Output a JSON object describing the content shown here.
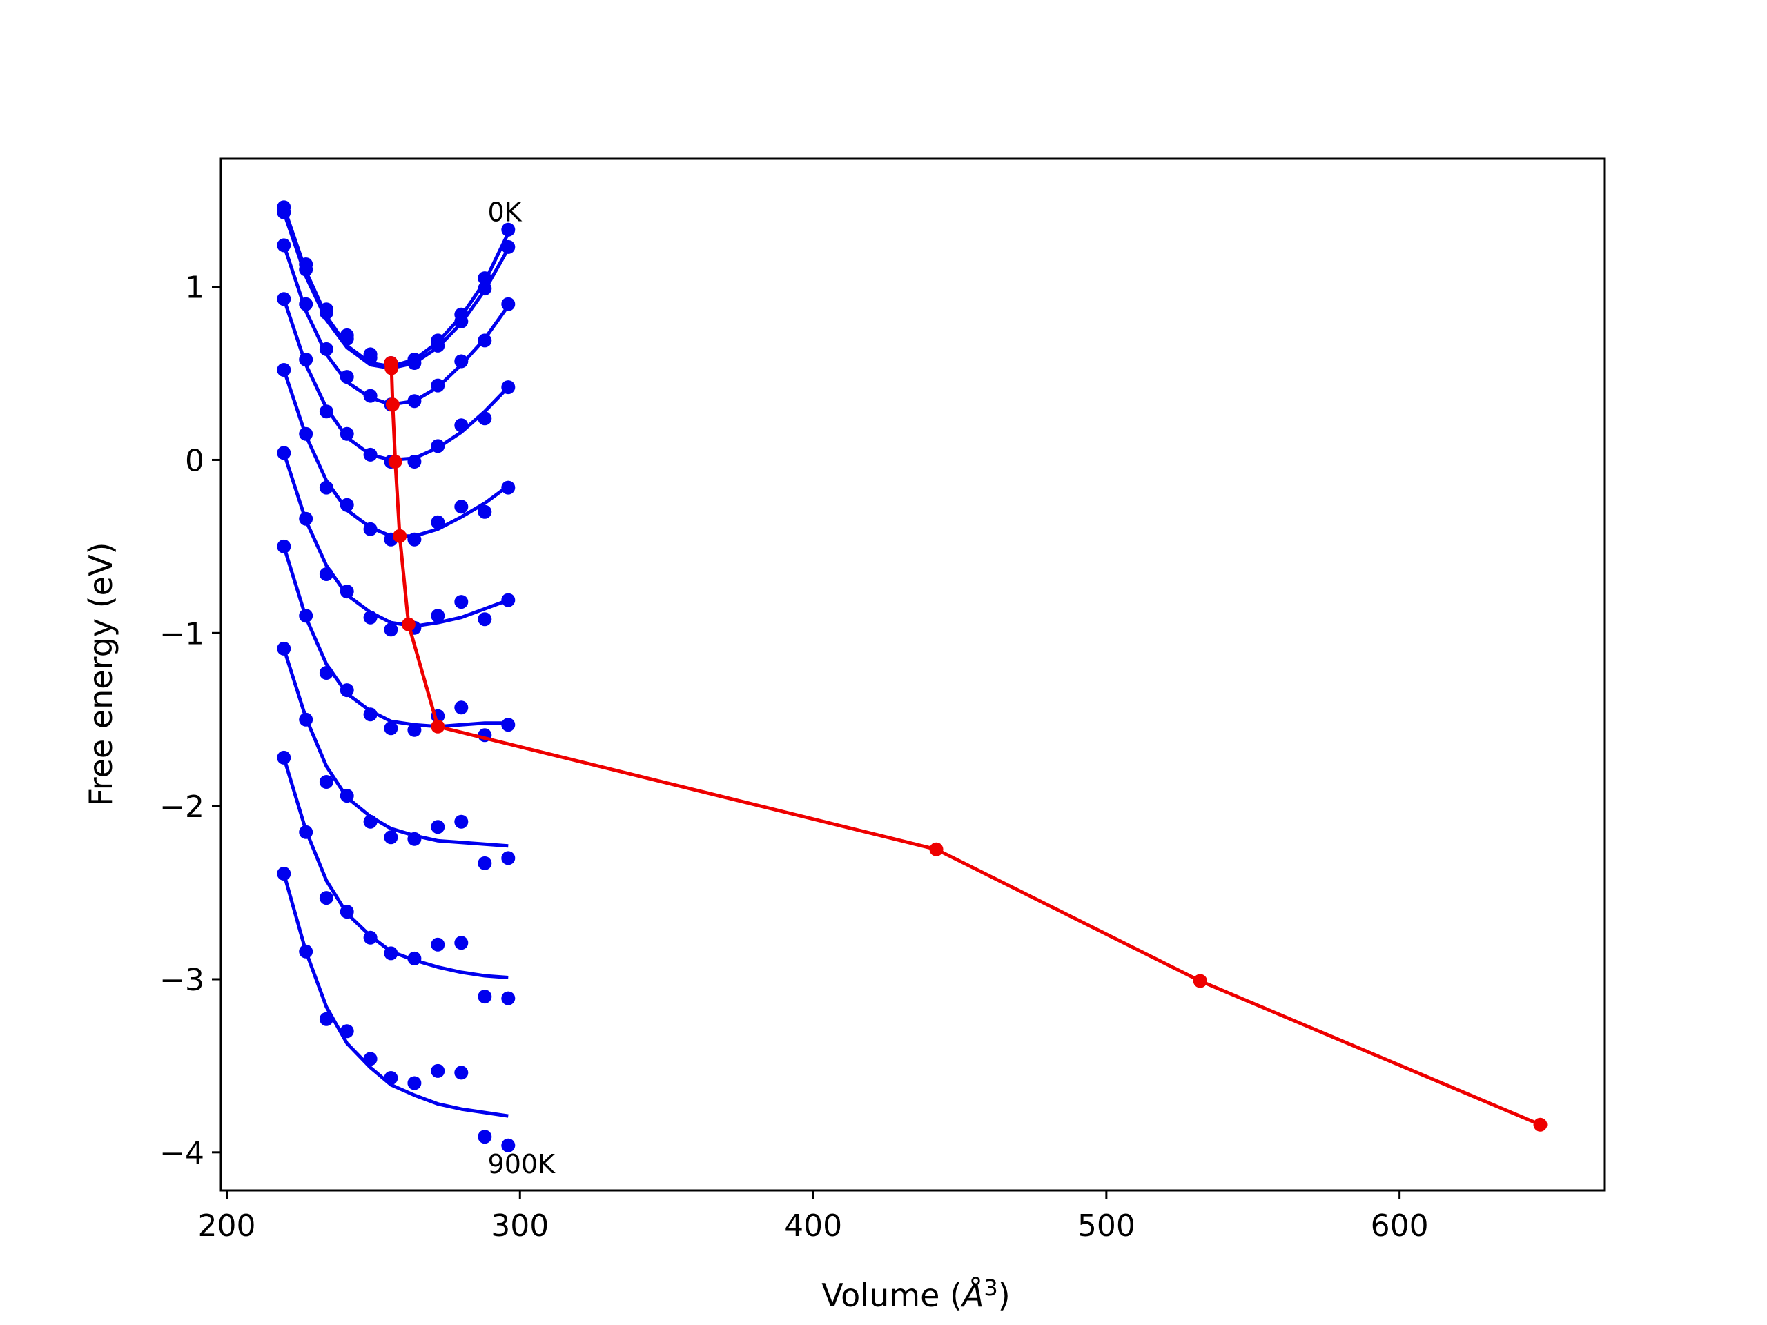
{
  "chart_data": {
    "type": "line",
    "title": "",
    "xlabel_prefix": "Volume (",
    "xlabel_unit": "Å",
    "xlabel_exp": "3",
    "xlabel_suffix": ")",
    "ylabel": "Free energy (eV)",
    "xlim": [
      198,
      670
    ],
    "ylim": [
      -4.22,
      1.74
    ],
    "xticks": [
      200,
      300,
      400,
      500,
      600
    ],
    "xtick_labels": [
      "200",
      "300",
      "400",
      "500",
      "600"
    ],
    "yticks": [
      1,
      0,
      -1,
      -2,
      -3,
      -4
    ],
    "ytick_labels": [
      "1",
      "0",
      "−1",
      "−2",
      "−3",
      "−4"
    ],
    "grid": false,
    "annotations": [
      {
        "text": "0K",
        "x": 289,
        "y": 1.38
      },
      {
        "text": "900K",
        "x": 289,
        "y": -4.12
      }
    ],
    "colors": {
      "isotherm": "#0000ee",
      "minimum": "#ee0000"
    },
    "volumes": [
      219.5,
      227,
      234,
      241,
      249,
      256,
      264,
      272,
      280,
      288,
      296
    ],
    "isotherms": [
      {
        "y": [
          1.46,
          1.13,
          0.87,
          0.72,
          0.61,
          0.56,
          0.58,
          0.69,
          0.84,
          1.05,
          1.33
        ],
        "fit": [
          1.46,
          1.09,
          0.83,
          0.66,
          0.56,
          0.54,
          0.58,
          0.68,
          0.83,
          1.03,
          1.31
        ]
      },
      {
        "y": [
          1.43,
          1.1,
          0.85,
          0.7,
          0.59,
          0.54,
          0.56,
          0.66,
          0.8,
          0.99,
          1.23
        ],
        "fit": [
          1.43,
          1.06,
          0.81,
          0.65,
          0.55,
          0.53,
          0.56,
          0.65,
          0.79,
          0.98,
          1.22
        ]
      },
      {
        "y": [
          1.24,
          0.9,
          0.64,
          0.48,
          0.37,
          0.32,
          0.34,
          0.43,
          0.57,
          0.69,
          0.9
        ],
        "fit": [
          1.24,
          0.86,
          0.61,
          0.45,
          0.36,
          0.32,
          0.34,
          0.42,
          0.55,
          0.7,
          0.89
        ]
      },
      {
        "y": [
          0.93,
          0.58,
          0.28,
          0.15,
          0.03,
          -0.01,
          -0.01,
          0.08,
          0.2,
          0.24,
          0.42
        ],
        "fit": [
          0.93,
          0.55,
          0.3,
          0.13,
          0.03,
          0.0,
          0.01,
          0.07,
          0.16,
          0.28,
          0.42
        ]
      },
      {
        "y": [
          0.52,
          0.15,
          -0.16,
          -0.26,
          -0.4,
          -0.46,
          -0.46,
          -0.36,
          -0.27,
          -0.3,
          -0.16
        ],
        "fit": [
          0.52,
          0.14,
          -0.12,
          -0.29,
          -0.39,
          -0.44,
          -0.44,
          -0.4,
          -0.33,
          -0.25,
          -0.15
        ]
      },
      {
        "y": [
          0.04,
          -0.34,
          -0.66,
          -0.76,
          -0.91,
          -0.98,
          -0.97,
          -0.9,
          -0.82,
          -0.92,
          -0.81
        ],
        "fit": [
          0.04,
          -0.35,
          -0.61,
          -0.78,
          -0.88,
          -0.94,
          -0.96,
          -0.94,
          -0.91,
          -0.86,
          -0.81
        ]
      },
      {
        "y": [
          -0.5,
          -0.9,
          -1.23,
          -1.33,
          -1.47,
          -1.55,
          -1.56,
          -1.48,
          -1.43,
          -1.59,
          -1.53
        ],
        "fit": [
          -0.5,
          -0.91,
          -1.18,
          -1.35,
          -1.45,
          -1.51,
          -1.53,
          -1.54,
          -1.53,
          -1.52,
          -1.52
        ]
      },
      {
        "y": [
          -1.09,
          -1.5,
          -1.86,
          -1.94,
          -2.09,
          -2.18,
          -2.19,
          -2.12,
          -2.09,
          -2.33,
          -2.3
        ],
        "fit": [
          -1.09,
          -1.49,
          -1.77,
          -1.95,
          -2.06,
          -2.13,
          -2.17,
          -2.2,
          -2.21,
          -2.22,
          -2.23
        ]
      },
      {
        "y": [
          -1.72,
          -2.15,
          -2.53,
          -2.61,
          -2.76,
          -2.85,
          -2.88,
          -2.8,
          -2.79,
          -3.1,
          -3.11
        ],
        "fit": [
          -1.72,
          -2.14,
          -2.43,
          -2.62,
          -2.75,
          -2.84,
          -2.89,
          -2.93,
          -2.96,
          -2.98,
          -2.99
        ]
      },
      {
        "y": [
          -2.39,
          -2.84,
          -3.23,
          -3.3,
          -3.46,
          -3.57,
          -3.6,
          -3.53,
          -3.54,
          -3.91,
          -3.96
        ],
        "fit": [
          -2.39,
          -2.84,
          -3.16,
          -3.37,
          -3.51,
          -3.61,
          -3.67,
          -3.72,
          -3.75,
          -3.77,
          -3.79
        ]
      }
    ],
    "minimum_path": {
      "x": [
        256,
        256.2,
        256.6,
        257.5,
        259,
        262,
        272,
        442,
        532,
        648
      ],
      "y": [
        0.56,
        0.53,
        0.32,
        -0.01,
        -0.44,
        -0.95,
        -1.54,
        -2.25,
        -3.01,
        -3.84
      ]
    }
  }
}
